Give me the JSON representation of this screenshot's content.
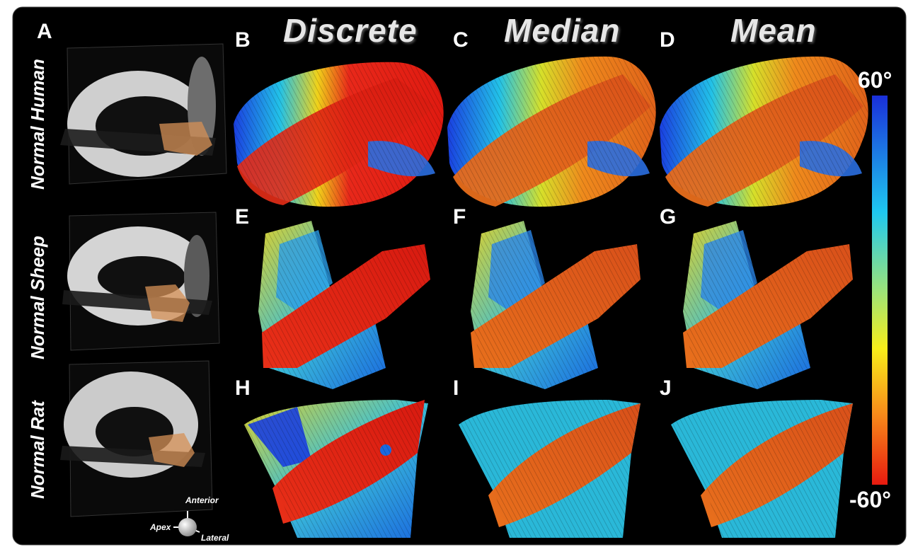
{
  "panels": {
    "A": "A",
    "B": "B",
    "C": "C",
    "D": "D",
    "E": "E",
    "F": "F",
    "G": "G",
    "H": "H",
    "I": "I",
    "J": "J"
  },
  "columns": {
    "discrete": "Discrete",
    "median": "Median",
    "mean": "Mean"
  },
  "rows": {
    "human": "Normal Human",
    "sheep": "Normal Sheep",
    "rat": "Normal Rat"
  },
  "colorbar": {
    "max_label": "60°",
    "min_label": "-60°",
    "colors": [
      "#1a2fd9",
      "#1ec8f0",
      "#9be37a",
      "#f7ee1a",
      "#f78a1a",
      "#e81a0f"
    ]
  },
  "orientation": {
    "anterior": "Anterior",
    "apex": "Apex",
    "lateral": "Lateral"
  }
}
